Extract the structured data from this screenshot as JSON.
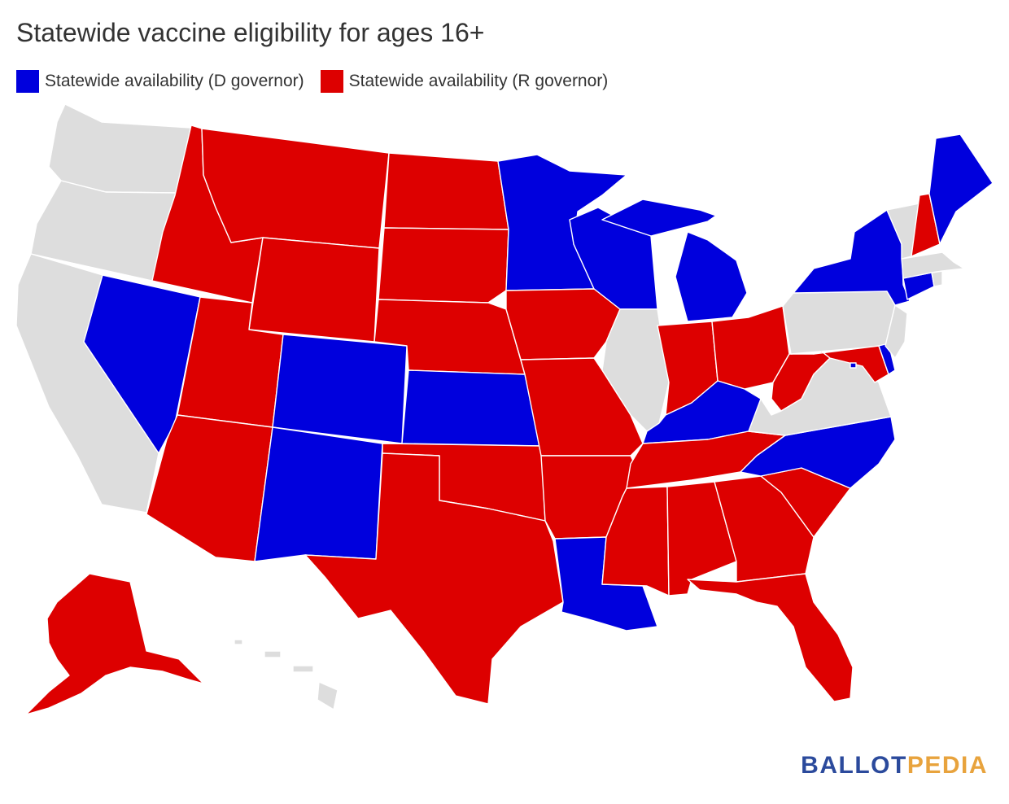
{
  "title": "Statewide vaccine eligibility for ages 16+",
  "legend": [
    {
      "label": "Statewide availability (D governor)",
      "color": "#0000dd"
    },
    {
      "label": "Statewide availability (R governor)",
      "color": "#dd0000"
    }
  ],
  "colors": {
    "d_governor": "#0000dd",
    "r_governor": "#dd0000",
    "no_statewide": "#dddddd"
  },
  "states": {
    "WA": "none",
    "OR": "none",
    "CA": "none",
    "IL": "none",
    "PA": "none",
    "VA": "none",
    "NJ": "none",
    "VT": "none",
    "MA": "none",
    "RI": "none",
    "HI": "none",
    "DE": "d",
    "DC": "d",
    "NV": "d",
    "CO": "d",
    "NM": "d",
    "KS": "d",
    "MN": "d",
    "WI": "d",
    "MI": "d",
    "KY": "d",
    "NC": "d",
    "LA": "d",
    "NY": "d",
    "CT": "d",
    "ME": "d",
    "ID": "r",
    "MT": "r",
    "WY": "r",
    "UT": "r",
    "AZ": "r",
    "ND": "r",
    "SD": "r",
    "NE": "r",
    "TX": "r",
    "OK": "r",
    "IA": "r",
    "MO": "r",
    "AR": "r",
    "MS": "r",
    "AL": "r",
    "TN": "r",
    "GA": "r",
    "FL": "r",
    "SC": "r",
    "IN": "r",
    "OH": "r",
    "WV": "r",
    "MD": "r",
    "NH": "r",
    "AK": "r"
  },
  "logo": {
    "part1": "BALLOT",
    "part2": "PEDIA",
    "color1": "#2b4a9c",
    "color2": "#e8a33d"
  }
}
